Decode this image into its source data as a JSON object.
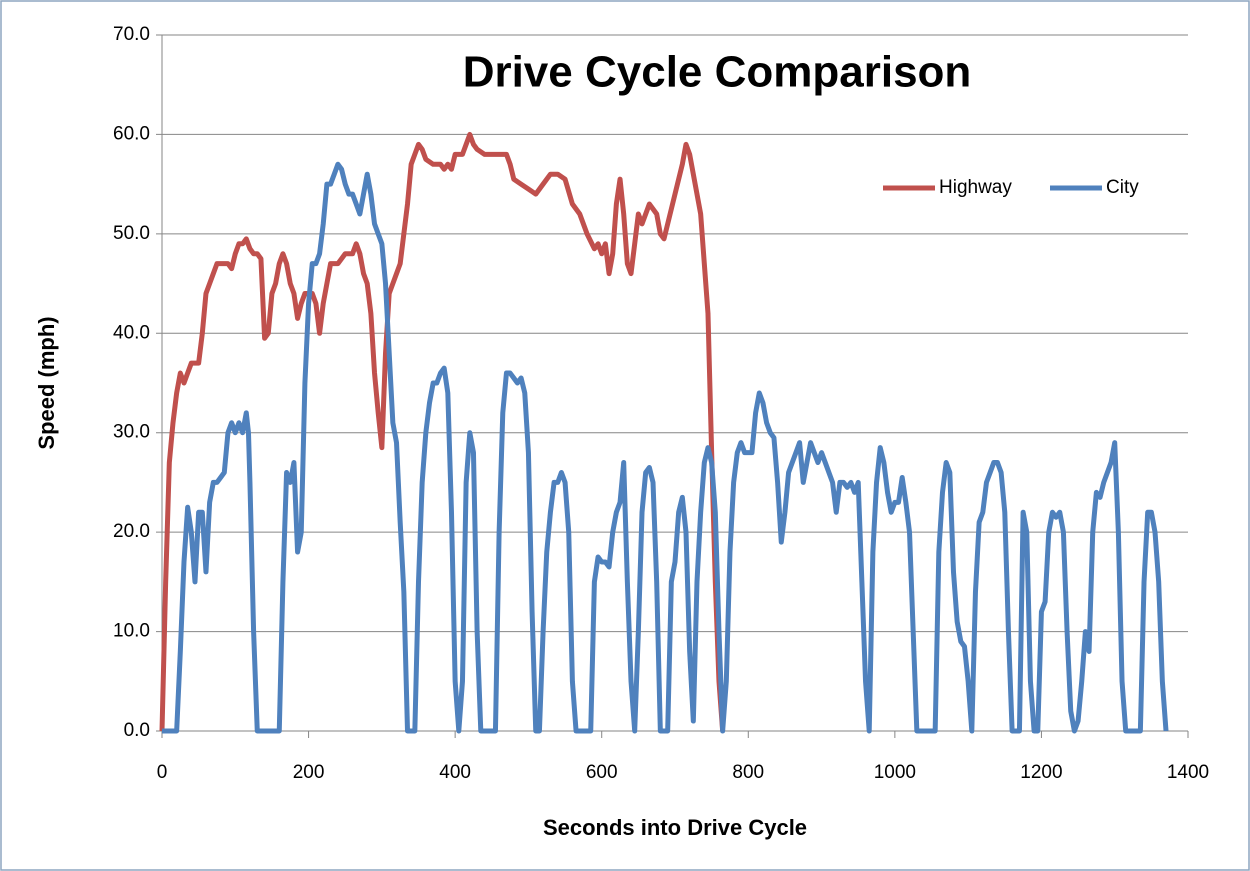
{
  "chart_data": {
    "type": "line",
    "title": "Drive Cycle Comparison",
    "x_label": "Seconds into Drive Cycle",
    "y_label": "Speed (mph)",
    "xlim": [
      0,
      1400
    ],
    "xticks": [
      0,
      200,
      400,
      600,
      800,
      1000,
      1200,
      1400
    ],
    "ylim": [
      0,
      70
    ],
    "yticks": [
      {
        "value": 0,
        "label": "0.0"
      },
      {
        "value": 10,
        "label": "10.0"
      },
      {
        "value": 20,
        "label": "20.0"
      },
      {
        "value": 30,
        "label": "30.0"
      },
      {
        "value": 40,
        "label": "40.0"
      },
      {
        "value": 50,
        "label": "50.0"
      },
      {
        "value": 60,
        "label": "60.0"
      },
      {
        "value": 70,
        "label": "70.0"
      }
    ],
    "grid": true,
    "legend": "top-right",
    "series": [
      {
        "name": "Highway",
        "color": "#c0504d",
        "x": [
          0,
          5,
          10,
          15,
          20,
          25,
          30,
          35,
          40,
          50,
          55,
          60,
          65,
          70,
          75,
          80,
          85,
          90,
          95,
          100,
          105,
          110,
          115,
          120,
          125,
          130,
          135,
          140,
          145,
          150,
          155,
          160,
          165,
          170,
          175,
          180,
          185,
          190,
          195,
          200,
          205,
          210,
          215,
          220,
          225,
          230,
          240,
          250,
          260,
          265,
          270,
          275,
          280,
          285,
          290,
          295,
          300,
          305,
          310,
          315,
          320,
          325,
          330,
          335,
          340,
          345,
          350,
          355,
          360,
          370,
          380,
          385,
          390,
          395,
          400,
          410,
          415,
          420,
          425,
          430,
          440,
          450,
          460,
          470,
          475,
          480,
          490,
          500,
          510,
          520,
          530,
          540,
          550,
          560,
          570,
          580,
          590,
          595,
          600,
          605,
          610,
          615,
          620,
          625,
          630,
          635,
          640,
          645,
          650,
          655,
          660,
          665,
          670,
          675,
          680,
          685,
          690,
          700,
          710,
          715,
          720,
          725,
          730,
          735,
          740,
          745,
          750,
          755,
          760,
          765
        ],
        "values": [
          0,
          15,
          27,
          31,
          34,
          36,
          35,
          36,
          37,
          37,
          40,
          44,
          45,
          46,
          47,
          47,
          47,
          47,
          46.5,
          48,
          49,
          49,
          49.5,
          48.5,
          48,
          48,
          47.5,
          39.5,
          40,
          44,
          45,
          47,
          48,
          47,
          45,
          44,
          41.5,
          43,
          44,
          44,
          44,
          43,
          40,
          43,
          45,
          47,
          47,
          48,
          48,
          49,
          48,
          46,
          45,
          42,
          36,
          32,
          28.5,
          38,
          44,
          45,
          46,
          47,
          50,
          53,
          57,
          58,
          59,
          58.5,
          57.5,
          57,
          57,
          56.5,
          57,
          56.5,
          58,
          58,
          59,
          60,
          59,
          58.5,
          58,
          58,
          58,
          58,
          57,
          55.5,
          55,
          54.5,
          54,
          55,
          56,
          56,
          55.5,
          53,
          52,
          50,
          48.5,
          49,
          48,
          49,
          46,
          48,
          53,
          55.5,
          52,
          47,
          46,
          49,
          52,
          51,
          52,
          53,
          52.5,
          52,
          50,
          49.5,
          51,
          54,
          57,
          59,
          58,
          56,
          54,
          52,
          47,
          42,
          28,
          15,
          5,
          0
        ]
      },
      {
        "name": "City",
        "color": "#4f81bd",
        "x": [
          0,
          20,
          25,
          30,
          35,
          40,
          45,
          50,
          55,
          60,
          65,
          70,
          75,
          80,
          85,
          90,
          95,
          100,
          105,
          110,
          115,
          118,
          120,
          125,
          130,
          160,
          165,
          170,
          175,
          180,
          185,
          190,
          195,
          200,
          205,
          210,
          215,
          220,
          225,
          230,
          235,
          240,
          245,
          250,
          255,
          260,
          265,
          270,
          275,
          280,
          285,
          290,
          295,
          300,
          305,
          310,
          315,
          320,
          325,
          330,
          335,
          345,
          350,
          355,
          360,
          365,
          370,
          375,
          380,
          385,
          390,
          395,
          400,
          405,
          410,
          415,
          420,
          425,
          430,
          435,
          455,
          460,
          465,
          470,
          475,
          480,
          485,
          490,
          495,
          500,
          505,
          510,
          515,
          520,
          525,
          530,
          535,
          540,
          545,
          550,
          555,
          560,
          565,
          585,
          590,
          595,
          600,
          605,
          610,
          615,
          620,
          625,
          630,
          635,
          640,
          645,
          650,
          655,
          660,
          665,
          670,
          675,
          680,
          690,
          695,
          700,
          705,
          710,
          715,
          720,
          725,
          730,
          735,
          740,
          745,
          750,
          755,
          760,
          765,
          770,
          775,
          780,
          785,
          790,
          795,
          800,
          805,
          810,
          815,
          820,
          825,
          830,
          835,
          840,
          845,
          850,
          855,
          860,
          865,
          870,
          875,
          880,
          885,
          890,
          895,
          900,
          905,
          910,
          915,
          920,
          925,
          930,
          935,
          940,
          945,
          950,
          955,
          960,
          965,
          970,
          975,
          980,
          985,
          990,
          995,
          1000,
          1005,
          1010,
          1015,
          1020,
          1025,
          1030,
          1055,
          1060,
          1065,
          1070,
          1075,
          1080,
          1085,
          1090,
          1095,
          1100,
          1105,
          1110,
          1115,
          1120,
          1125,
          1130,
          1135,
          1140,
          1145,
          1150,
          1155,
          1160,
          1170,
          1175,
          1180,
          1185,
          1190,
          1195,
          1200,
          1205,
          1210,
          1215,
          1220,
          1225,
          1230,
          1235,
          1240,
          1245,
          1250,
          1255,
          1260,
          1265,
          1270,
          1275,
          1280,
          1285,
          1290,
          1295,
          1300,
          1305,
          1310,
          1315,
          1335,
          1340,
          1345,
          1350,
          1355,
          1360,
          1365,
          1370
        ],
        "values": [
          0,
          0,
          8,
          17,
          22.5,
          20,
          15,
          22,
          22,
          16,
          23,
          25,
          25,
          25.5,
          26,
          30,
          31,
          30,
          31,
          30,
          32,
          30,
          25,
          10,
          0,
          0,
          15,
          26,
          25,
          27,
          18,
          20,
          35,
          43,
          47,
          47,
          48,
          51,
          55,
          55,
          56,
          57,
          56.5,
          55,
          54,
          54,
          53,
          52,
          54,
          56,
          54,
          51,
          50,
          49,
          45,
          38,
          31,
          29,
          21,
          14,
          0,
          0,
          15,
          25,
          30,
          33,
          35,
          35,
          36,
          36.5,
          34,
          22,
          5,
          0,
          5,
          25,
          30,
          28,
          10,
          0,
          0,
          20,
          32,
          36,
          36,
          35.5,
          35,
          35.5,
          34,
          28,
          12,
          0,
          0,
          10,
          18,
          22,
          25,
          25,
          26,
          25,
          20,
          5,
          0,
          0,
          15,
          17.5,
          17,
          17,
          16.5,
          20,
          22,
          23,
          27,
          15,
          5,
          0,
          10,
          22,
          26,
          26.5,
          25,
          15,
          0,
          0,
          15,
          17,
          22,
          23.5,
          20,
          8,
          1,
          15,
          22,
          27,
          28.5,
          27,
          22,
          10,
          0,
          5,
          18,
          25,
          28,
          29,
          28,
          28,
          28,
          32,
          34,
          33,
          31,
          30,
          29.5,
          25,
          19,
          22,
          26,
          27,
          28,
          29,
          25,
          27,
          29,
          28,
          27,
          28,
          27,
          26,
          25,
          22,
          25,
          25,
          24.5,
          25,
          24,
          25,
          15,
          5,
          0,
          18,
          25,
          28.5,
          27,
          24,
          22,
          23,
          23,
          25.5,
          23,
          20,
          10,
          0,
          0,
          18,
          24,
          27,
          26,
          16,
          11,
          9,
          8.5,
          5,
          0,
          14,
          21,
          22,
          25,
          26,
          27,
          27,
          26,
          22,
          10,
          0,
          0,
          22,
          20,
          5,
          0,
          0,
          12,
          13,
          20,
          22,
          21.5,
          22,
          20,
          10,
          2,
          0,
          1,
          5,
          10,
          8,
          20,
          24,
          23.5,
          25,
          26,
          27,
          29,
          20,
          5,
          0,
          0,
          15,
          22,
          22,
          20,
          15,
          5,
          0
        ]
      }
    ]
  }
}
